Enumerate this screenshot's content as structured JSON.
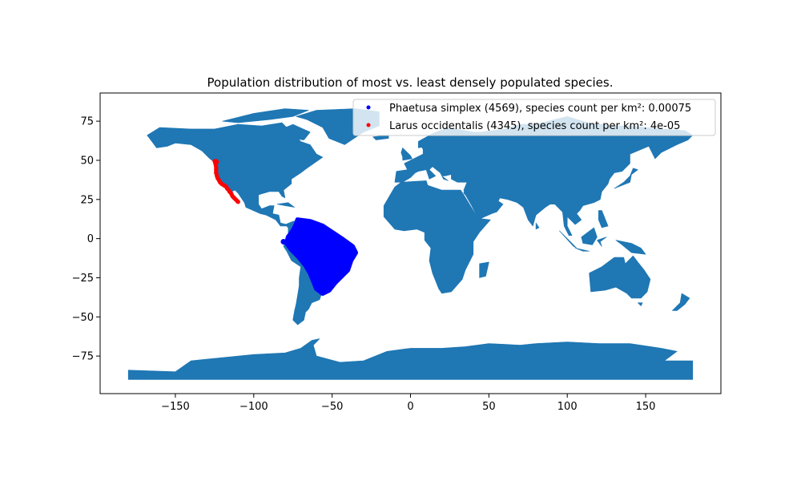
{
  "chart_data": {
    "type": "scatter",
    "title": "Population distribution of most vs. least densely populated species.",
    "xlabel": "",
    "ylabel": "",
    "xlim": [
      -198,
      198
    ],
    "ylim": [
      -99,
      93
    ],
    "x_ticks": [
      -150,
      -100,
      -50,
      0,
      50,
      100,
      150
    ],
    "y_ticks": [
      75,
      50,
      25,
      0,
      -25,
      -50,
      -75
    ],
    "x_tick_labels": [
      "−150",
      "−100",
      "−50",
      "0",
      "50",
      "100",
      "150"
    ],
    "y_tick_labels": [
      "75",
      "50",
      "25",
      "0",
      "−25",
      "−50",
      "−75"
    ],
    "grid": false,
    "basemap": "world country polygons",
    "land_color": "#1f77b4",
    "legend_position": "top-right",
    "series": [
      {
        "name": "Phaetusa simplex (4569), species count per km²: 0.00075",
        "color": "#0000ff",
        "region": "north and central South America (Amazon basin to southern Brazil)",
        "extent": {
          "lon": [
            -81,
            -35
          ],
          "lat": [
            -35,
            12
          ]
        }
      },
      {
        "name": "Larus occidentalis (4345), species count per km²: 4e-05",
        "color": "#ff0000",
        "region": "Pacific coast of North America (Washington to Baja California)",
        "extent": {
          "lon": [
            -126,
            -110
          ],
          "lat": [
            23,
            50
          ]
        }
      }
    ]
  }
}
